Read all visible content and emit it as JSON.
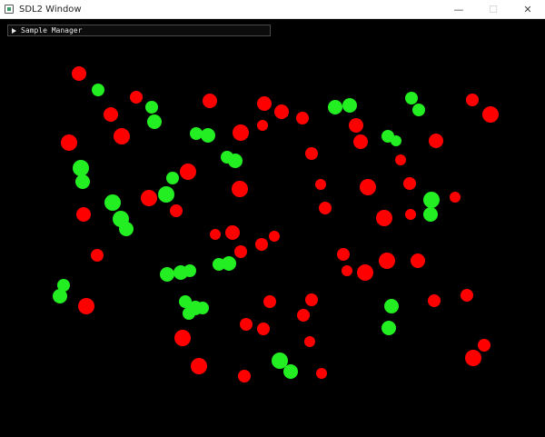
{
  "window": {
    "title": "SDL2 Window",
    "icon": "sdl-app-icon",
    "controls": {
      "minimize": "—",
      "maximize": "☐",
      "close": "✕"
    }
  },
  "panel": {
    "label": "Sample Manager",
    "state": "collapsed"
  },
  "scene": {
    "background": "#000000",
    "red_color": "#ff0000",
    "green_color": "#22ee22",
    "red": [
      [
        87,
        81,
        8
      ],
      [
        150,
        107,
        7
      ],
      [
        122,
        126,
        8
      ],
      [
        231,
        111,
        8
      ],
      [
        291,
        114,
        8
      ],
      [
        310,
        123,
        8
      ],
      [
        333,
        130,
        7
      ],
      [
        289,
        138,
        6
      ],
      [
        265,
        146,
        9
      ],
      [
        134,
        150,
        9
      ],
      [
        76,
        157,
        9
      ],
      [
        392,
        138,
        8
      ],
      [
        397,
        156,
        8
      ],
      [
        480,
        155,
        8
      ],
      [
        520,
        110,
        7
      ],
      [
        540,
        126,
        9
      ],
      [
        441,
        176,
        6
      ],
      [
        343,
        169,
        7
      ],
      [
        207,
        189,
        9
      ],
      [
        164,
        218,
        9
      ],
      [
        264,
        208,
        9
      ],
      [
        194,
        232,
        7
      ],
      [
        92,
        236,
        8
      ],
      [
        353,
        203,
        6
      ],
      [
        358,
        229,
        7
      ],
      [
        405,
        206,
        9
      ],
      [
        451,
        202,
        7
      ],
      [
        501,
        217,
        6
      ],
      [
        423,
        240,
        9
      ],
      [
        452,
        236,
        6
      ],
      [
        237,
        258,
        6
      ],
      [
        256,
        256,
        8
      ],
      [
        302,
        260,
        6
      ],
      [
        288,
        269,
        7
      ],
      [
        265,
        277,
        7
      ],
      [
        107,
        281,
        7
      ],
      [
        378,
        280,
        7
      ],
      [
        382,
        298,
        6
      ],
      [
        402,
        300,
        9
      ],
      [
        426,
        287,
        9
      ],
      [
        460,
        287,
        8
      ],
      [
        95,
        337,
        9
      ],
      [
        297,
        332,
        7
      ],
      [
        343,
        330,
        7
      ],
      [
        334,
        347,
        7
      ],
      [
        271,
        357,
        7
      ],
      [
        290,
        362,
        7
      ],
      [
        478,
        331,
        7
      ],
      [
        514,
        325,
        7
      ],
      [
        201,
        372,
        9
      ],
      [
        341,
        376,
        6
      ],
      [
        219,
        403,
        9
      ],
      [
        269,
        414,
        7
      ],
      [
        354,
        411,
        6
      ],
      [
        533,
        380,
        7
      ],
      [
        521,
        394,
        9
      ]
    ],
    "green": [
      [
        108,
        99,
        7
      ],
      [
        167,
        118,
        7
      ],
      [
        170,
        134,
        8
      ],
      [
        216,
        147,
        7
      ],
      [
        229,
        149,
        8
      ],
      [
        369,
        118,
        8
      ],
      [
        385,
        116,
        8
      ],
      [
        453,
        108,
        7
      ],
      [
        461,
        121,
        7
      ],
      [
        427,
        150,
        7
      ],
      [
        436,
        155,
        6
      ],
      [
        250,
        173,
        7
      ],
      [
        259,
        177,
        8
      ],
      [
        89,
        185,
        9
      ],
      [
        91,
        200,
        8
      ],
      [
        190,
        196,
        7
      ],
      [
        183,
        214,
        9
      ],
      [
        124,
        223,
        9
      ],
      [
        133,
        241,
        9
      ],
      [
        139,
        252,
        8
      ],
      [
        475,
        220,
        9
      ],
      [
        474,
        236,
        8
      ],
      [
        184,
        302,
        8
      ],
      [
        199,
        300,
        8
      ],
      [
        209,
        298,
        7
      ],
      [
        241,
        291,
        7
      ],
      [
        252,
        290,
        8
      ],
      [
        70,
        314,
        7
      ],
      [
        66,
        326,
        8
      ],
      [
        204,
        332,
        7
      ],
      [
        208,
        345,
        7
      ],
      [
        215,
        339,
        8
      ],
      [
        223,
        339,
        7
      ],
      [
        431,
        337,
        8
      ],
      [
        428,
        361,
        8
      ],
      [
        308,
        397,
        9
      ],
      [
        320,
        409,
        8
      ]
    ]
  }
}
